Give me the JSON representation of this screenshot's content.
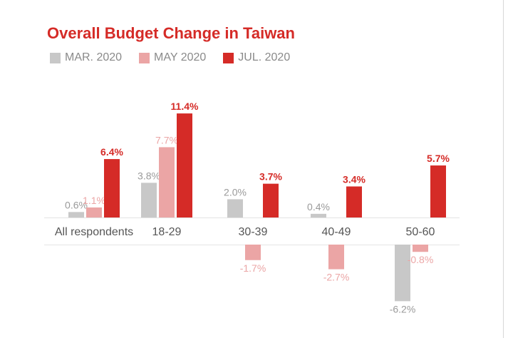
{
  "chart_data": {
    "type": "bar",
    "title": "Overall Budget Change in Taiwan",
    "xlabel": "",
    "ylabel": "",
    "categories": [
      "All respondents",
      "18-29",
      "30-39",
      "40-49",
      "50-60"
    ],
    "series": [
      {
        "name": "MAR. 2020",
        "color": "#c8c8c8",
        "label_color": "#9a9a9a",
        "values": [
          0.6,
          3.8,
          2.0,
          0.4,
          -6.2
        ],
        "labels": [
          "0.6%",
          "3.8%",
          "2.0%",
          "0.4%",
          "-6.2%"
        ]
      },
      {
        "name": "MAY 2020",
        "color": "#eba5a5",
        "label_color": "#eba5a5",
        "values": [
          1.1,
          7.7,
          -1.7,
          -2.7,
          -0.8
        ],
        "labels": [
          "1.1%",
          "7.7%",
          "-1.7%",
          "-2.7%",
          "-0.8%"
        ]
      },
      {
        "name": "JUL. 2020",
        "color": "#d52b27",
        "label_color": "#d52b27",
        "values": [
          6.4,
          11.4,
          3.7,
          3.4,
          5.7
        ],
        "labels": [
          "6.4%",
          "11.4%",
          "3.7%",
          "3.4%",
          "5.7%"
        ]
      }
    ],
    "ylim": [
      -6.2,
      11.4
    ],
    "grid": false,
    "legend": "top-left"
  }
}
